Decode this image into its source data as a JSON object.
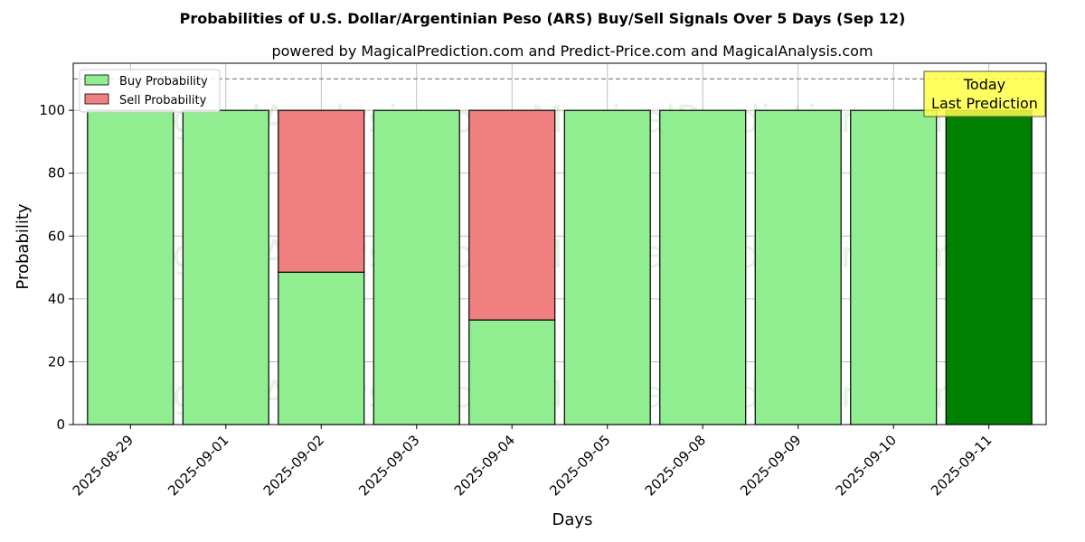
{
  "chart_data": {
    "type": "bar",
    "title": "Probabilities of U.S. Dollar/Argentinian Peso (ARS) Buy/Sell Signals Over 5 Days (Sep 12)",
    "subtitle": "powered by MagicalPrediction.com and Predict-Price.com and MagicalAnalysis.com",
    "xlabel": "Days",
    "ylabel": "Probability",
    "ylim": [
      0,
      115
    ],
    "yticks": [
      0,
      20,
      40,
      60,
      80,
      100
    ],
    "reference_line": 110,
    "grid": true,
    "legend_placement": "top-left",
    "categories": [
      "2025-08-29",
      "2025-09-01",
      "2025-09-02",
      "2025-09-03",
      "2025-09-04",
      "2025-09-05",
      "2025-09-08",
      "2025-09-09",
      "2025-09-10",
      "2025-09-11"
    ],
    "series": [
      {
        "name": "Buy Probability",
        "values": [
          100,
          100,
          48.5,
          100,
          33.3,
          100,
          100,
          100,
          100,
          100
        ],
        "color": "#90ee90"
      },
      {
        "name": "Sell Probability",
        "values": [
          0,
          0,
          51.5,
          0,
          66.7,
          0,
          0,
          0,
          0,
          0
        ],
        "color": "#f08080"
      }
    ],
    "highlight": {
      "index": 9,
      "color": "#008000"
    },
    "annotation": {
      "lines": [
        "Today",
        "Last Prediction"
      ],
      "background": "#ffff44"
    },
    "watermarks": [
      "MagicalAnalysis.com",
      "MagicalPrediction.com"
    ]
  }
}
